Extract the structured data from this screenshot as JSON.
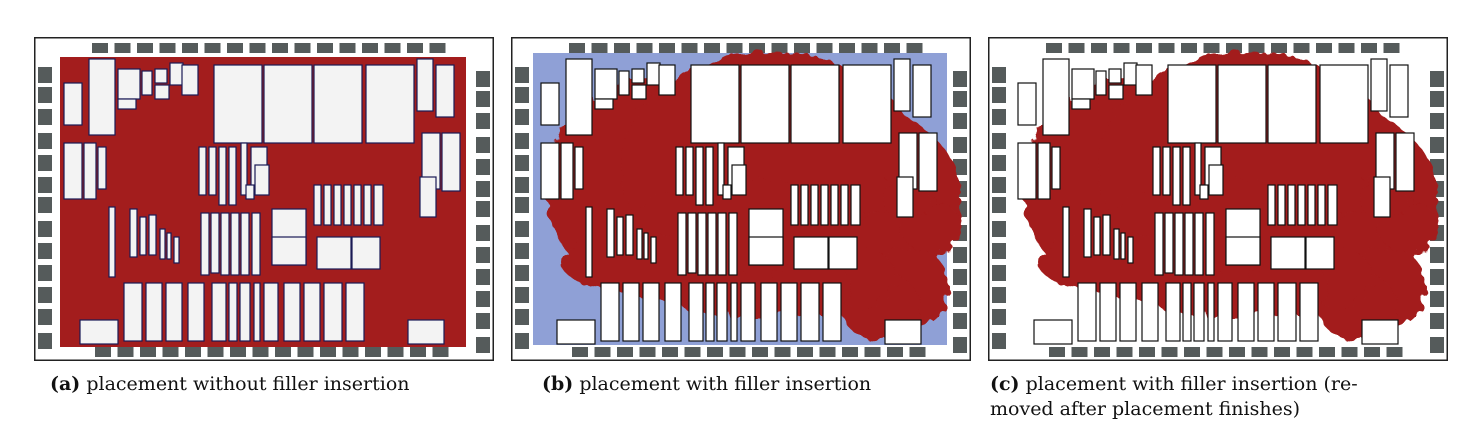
{
  "figure": {
    "panels": [
      {
        "id": "a",
        "label": "(a)",
        "text": "placement without filler insertion"
      },
      {
        "id": "b",
        "label": "(b)",
        "text": "placement with filler insertion"
      },
      {
        "id": "c",
        "label": "(c)",
        "text_line1": "placement with filler insertion (re-",
        "text_line2": "moved after placement finishes)"
      }
    ]
  },
  "colors": {
    "cells": "#a31d1d",
    "fillers": "#8fa0d6",
    "macro_outline": "#1a1a55",
    "macro_fill": "#f3f3f3",
    "io_pads": "#555b5b",
    "frame": "#222222"
  }
}
